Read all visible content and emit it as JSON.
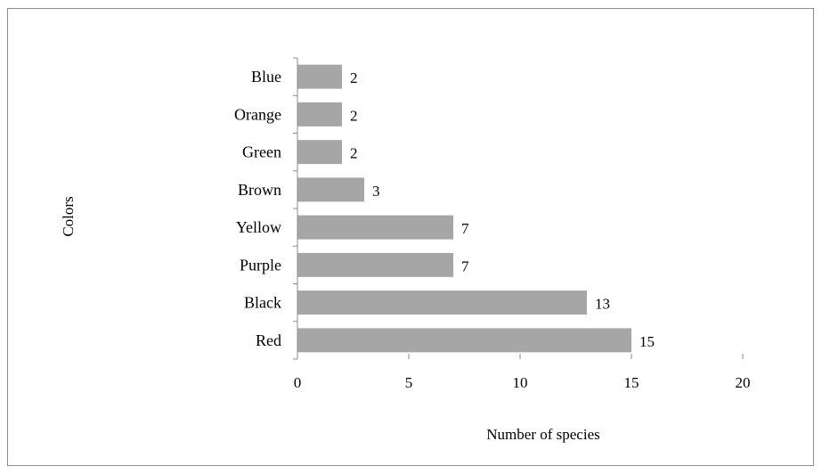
{
  "chart_data": {
    "type": "bar",
    "orientation": "horizontal",
    "categories": [
      "Blue",
      "Orange",
      "Green",
      "Brown",
      "Yellow",
      "Purple",
      "Black",
      "Red"
    ],
    "values": [
      2,
      2,
      2,
      3,
      7,
      7,
      13,
      15
    ],
    "data_labels": [
      "2",
      "2",
      "2",
      "3",
      "7",
      "7",
      "13",
      "15"
    ],
    "title": "",
    "xlabel": "Number of species",
    "ylabel": "Colors",
    "xlim": [
      0,
      20
    ],
    "xticks": [
      0,
      5,
      10,
      15,
      20
    ],
    "xtick_labels": [
      "0",
      "5",
      "10",
      "15",
      "20"
    ],
    "grid": false,
    "legend": "none",
    "bar_color": "#a6a6a6"
  }
}
